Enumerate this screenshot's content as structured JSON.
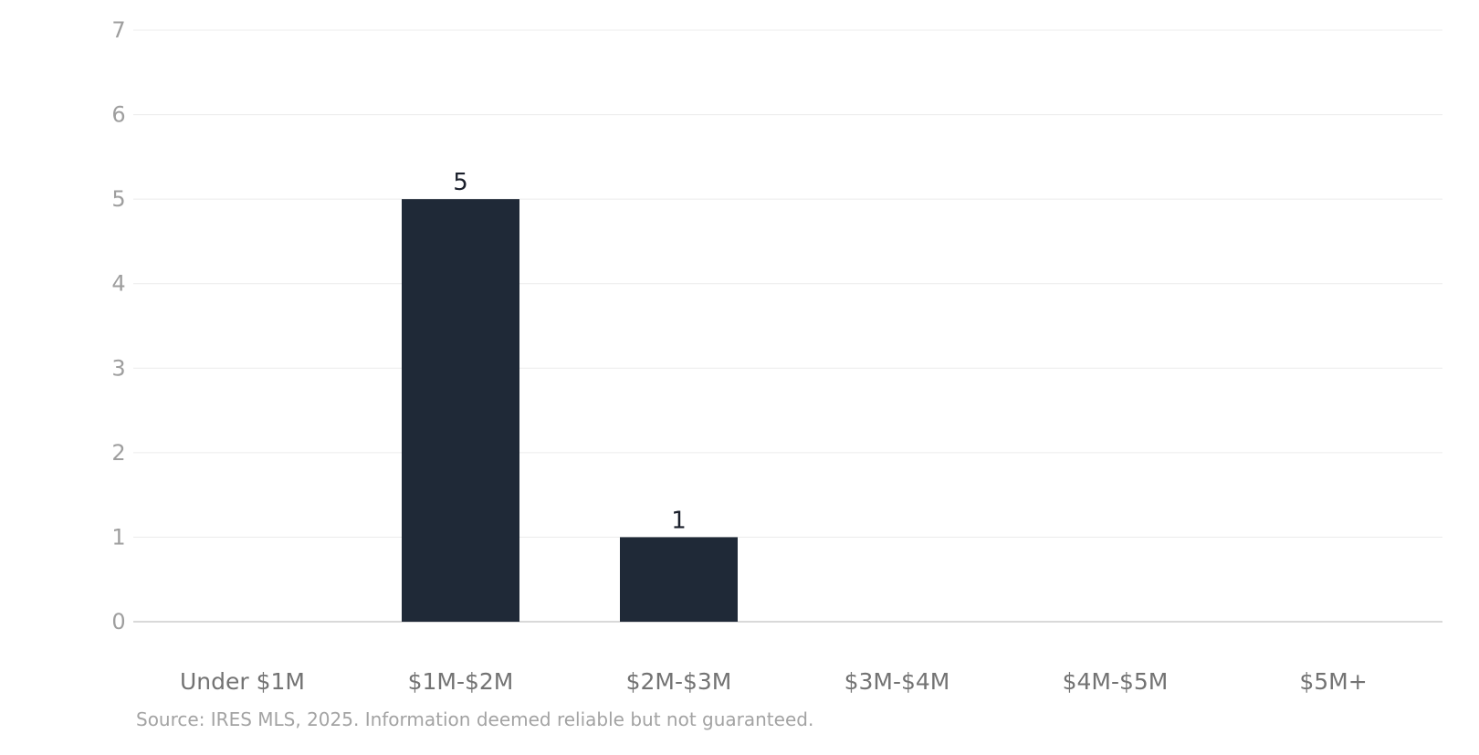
{
  "chart_data": {
    "type": "bar",
    "categories": [
      "Under $1M",
      "$1M-$2M",
      "$2M-$3M",
      "$3M-$4M",
      "$4M-$5M",
      "$5M+"
    ],
    "values": [
      0,
      5,
      1,
      0,
      0,
      0
    ],
    "data_labels": [
      "",
      "5",
      "1",
      "",
      "",
      ""
    ],
    "ylim": [
      0,
      7
    ],
    "yticks": [
      "0",
      "1",
      "2",
      "3",
      "4",
      "5",
      "6",
      "7"
    ],
    "grid": true,
    "bar_color": "#1f2937",
    "gridline_color": "#ececec",
    "tick_label_color": "#9e9e9e",
    "category_label_color": "#737373",
    "data_label_color": "#1a1f2b"
  },
  "footer": {
    "source": "Source: IRES MLS, 2025. Information deemed reliable but not guaranteed."
  }
}
